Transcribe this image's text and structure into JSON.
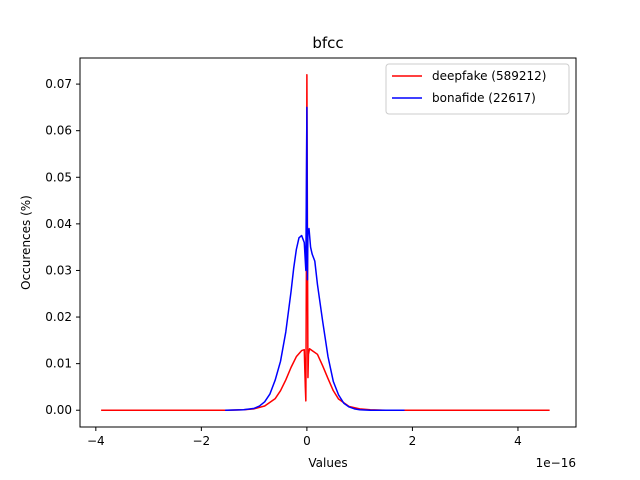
{
  "chart_data": {
    "type": "line",
    "title": "bfcc",
    "xlabel": "Values",
    "ylabel": "Occurences (%)",
    "x_offset_text": "1e−16",
    "xlim": [
      -4.3,
      5.1
    ],
    "ylim": [
      -0.0036,
      0.0756
    ],
    "xticks": [
      {
        "value": -4,
        "label": "−4"
      },
      {
        "value": -2,
        "label": "−2"
      },
      {
        "value": 0,
        "label": "0"
      },
      {
        "value": 2,
        "label": "2"
      },
      {
        "value": 4,
        "label": "4"
      }
    ],
    "yticks": [
      {
        "value": 0.0,
        "label": "0.00"
      },
      {
        "value": 0.01,
        "label": "0.01"
      },
      {
        "value": 0.02,
        "label": "0.02"
      },
      {
        "value": 0.03,
        "label": "0.03"
      },
      {
        "value": 0.04,
        "label": "0.04"
      },
      {
        "value": 0.05,
        "label": "0.05"
      },
      {
        "value": 0.06,
        "label": "0.06"
      },
      {
        "value": 0.07,
        "label": "0.07"
      }
    ],
    "grid": false,
    "legend_position": "top-right",
    "series": [
      {
        "name": "deepfake (589212)",
        "color": "#ff0000",
        "x": [
          -3.9,
          -3.0,
          -2.0,
          -1.5,
          -1.2,
          -1.0,
          -0.8,
          -0.6,
          -0.5,
          -0.4,
          -0.3,
          -0.2,
          -0.1,
          -0.05,
          -0.03,
          -0.02,
          -0.01,
          0.0,
          0.01,
          0.02,
          0.03,
          0.05,
          0.1,
          0.2,
          0.3,
          0.4,
          0.5,
          0.6,
          0.8,
          1.0,
          1.2,
          1.5,
          2.0,
          3.0,
          4.0,
          4.6
        ],
        "y": [
          0.0,
          0.0,
          0.0,
          0.0,
          0.0001,
          0.0003,
          0.0009,
          0.0025,
          0.0042,
          0.0065,
          0.0092,
          0.0115,
          0.0128,
          0.013,
          0.005,
          0.002,
          0.03,
          0.072,
          0.04,
          0.007,
          0.012,
          0.0132,
          0.0128,
          0.012,
          0.0095,
          0.0068,
          0.0042,
          0.0024,
          0.0008,
          0.0003,
          0.0001,
          0.0,
          0.0,
          0.0,
          0.0,
          0.0
        ]
      },
      {
        "name": "bonafide (22617)",
        "color": "#0000ff",
        "x": [
          -1.55,
          -1.2,
          -1.0,
          -0.9,
          -0.8,
          -0.7,
          -0.6,
          -0.5,
          -0.4,
          -0.3,
          -0.25,
          -0.2,
          -0.15,
          -0.1,
          -0.05,
          -0.02,
          0.0,
          0.01,
          0.02,
          0.04,
          0.07,
          0.1,
          0.15,
          0.2,
          0.3,
          0.4,
          0.5,
          0.6,
          0.7,
          0.8,
          0.9,
          1.0,
          1.2,
          1.5,
          1.85
        ],
        "y": [
          0.0,
          0.0001,
          0.0004,
          0.0009,
          0.0018,
          0.0035,
          0.0065,
          0.0105,
          0.0168,
          0.0255,
          0.0305,
          0.0345,
          0.037,
          0.0375,
          0.036,
          0.03,
          0.065,
          0.028,
          0.0385,
          0.039,
          0.035,
          0.0335,
          0.032,
          0.027,
          0.019,
          0.0115,
          0.0062,
          0.0033,
          0.0015,
          0.0007,
          0.0003,
          0.0001,
          0.0,
          0.0,
          0.0
        ]
      }
    ]
  }
}
